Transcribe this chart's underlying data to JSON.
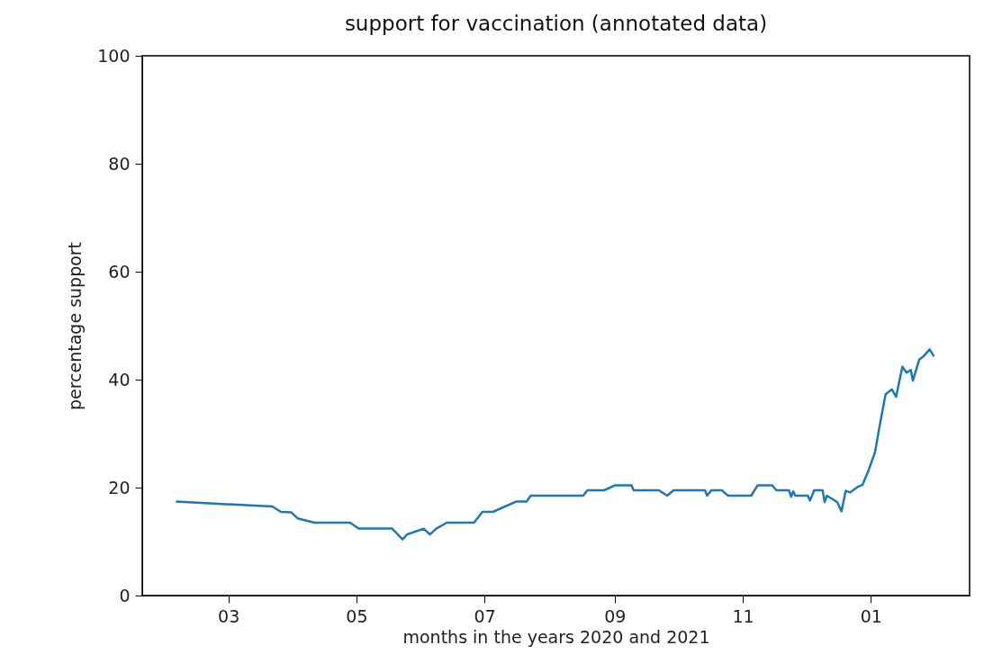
{
  "chart_data": {
    "type": "line",
    "title": "support for vaccination (annotated data)",
    "xlabel": "months in the years 2020 and 2021",
    "ylabel": "percentage support",
    "x": [
      "2020-02-05",
      "2020-03-22",
      "2020-03-26",
      "2020-03-31",
      "2020-04-03",
      "2020-04-11",
      "2020-04-28",
      "2020-05-02",
      "2020-05-18",
      "2020-05-23",
      "2020-05-25",
      "2020-06-02",
      "2020-06-05",
      "2020-06-08",
      "2020-06-13",
      "2020-06-26",
      "2020-06-30",
      "2020-07-05",
      "2020-07-16",
      "2020-07-21",
      "2020-07-23",
      "2020-08-17",
      "2020-08-19",
      "2020-08-27",
      "2020-09-01",
      "2020-09-09",
      "2020-09-10",
      "2020-09-22",
      "2020-09-26",
      "2020-09-29",
      "2020-10-14",
      "2020-10-15",
      "2020-10-17",
      "2020-10-22",
      "2020-10-25",
      "2020-11-05",
      "2020-11-08",
      "2020-11-15",
      "2020-11-17",
      "2020-11-23",
      "2020-11-24",
      "2020-11-25",
      "2020-11-26",
      "2020-12-02",
      "2020-12-03",
      "2020-12-05",
      "2020-12-09",
      "2020-12-10",
      "2020-12-11",
      "2020-12-14",
      "2020-12-16",
      "2020-12-18",
      "2020-12-20",
      "2020-12-22",
      "2020-12-26",
      "2020-12-28",
      "2020-12-31",
      "2021-01-02",
      "2021-01-03",
      "2021-01-05",
      "2021-01-08",
      "2021-01-11",
      "2021-01-13",
      "2021-01-16",
      "2021-01-18",
      "2021-01-20",
      "2021-01-21",
      "2021-01-24",
      "2021-01-26",
      "2021-01-29",
      "2021-01-31"
    ],
    "series": [
      {
        "color": "#1f77b4",
        "values": [
          17.4,
          16.5,
          15.5,
          15.4,
          14.3,
          13.5,
          13.5,
          12.4,
          12.4,
          10.4,
          11.3,
          12.4,
          11.3,
          12.4,
          13.5,
          13.5,
          15.5,
          15.5,
          17.4,
          17.4,
          18.5,
          18.5,
          19.5,
          19.5,
          20.4,
          20.4,
          19.5,
          19.5,
          18.5,
          19.5,
          19.5,
          18.5,
          19.5,
          19.5,
          18.5,
          18.5,
          20.4,
          20.4,
          19.5,
          19.5,
          18.3,
          19.3,
          18.5,
          18.5,
          17.6,
          19.5,
          19.5,
          17.3,
          18.5,
          17.8,
          17.3,
          15.6,
          19.4,
          19.1,
          20.2,
          20.5,
          23.3,
          25.5,
          26.6,
          31.1,
          37.3,
          38.2,
          36.8,
          42.4,
          41.3,
          41.8,
          39.8,
          43.7,
          44.3,
          45.6,
          44.3
        ]
      }
    ],
    "xlim": [
      "2020-01-20",
      "2021-02-17"
    ],
    "xticks": [
      {
        "value": "2020-03-01",
        "label": "03"
      },
      {
        "value": "2020-05-01",
        "label": "05"
      },
      {
        "value": "2020-07-01",
        "label": "07"
      },
      {
        "value": "2020-09-01",
        "label": "09"
      },
      {
        "value": "2020-11-01",
        "label": "11"
      },
      {
        "value": "2021-01-01",
        "label": "01"
      }
    ],
    "ylim": [
      0,
      100
    ],
    "yticks": [
      0,
      20,
      40,
      60,
      80,
      100
    ],
    "grid": false,
    "marker": "none",
    "line_style": "solid"
  }
}
